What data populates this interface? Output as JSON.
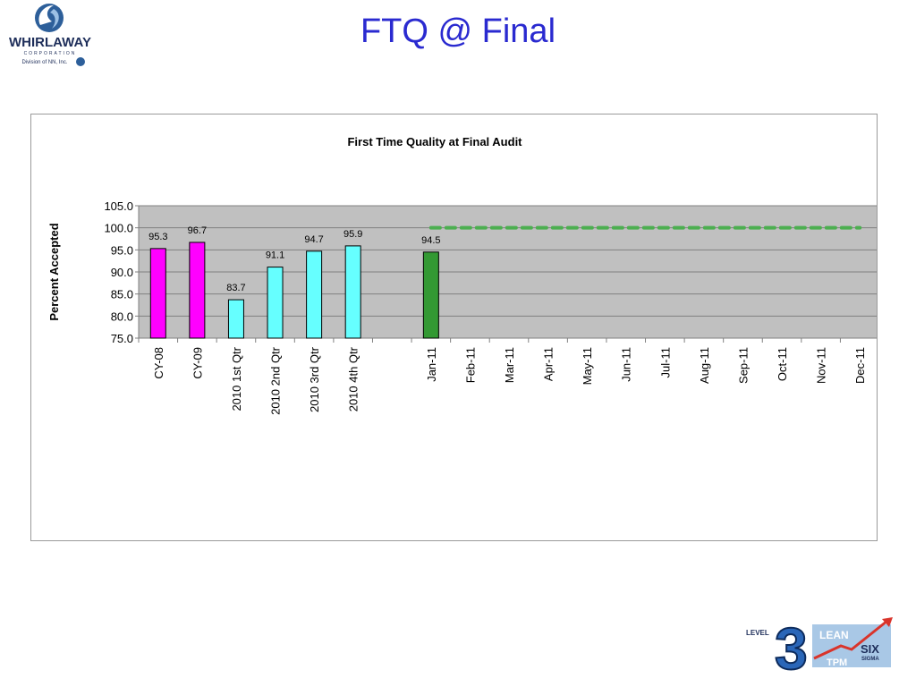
{
  "page": {
    "title": "FTQ @ Final"
  },
  "logo": {
    "name": "WHIRLAWAY",
    "sub": "CORPORATION",
    "division": "Division of NN, Inc."
  },
  "badge": {
    "level_text": "LEVEL",
    "level_number": "3",
    "lean": "LEAN",
    "six": "SIX",
    "sigma": "SIGMA",
    "tpm": "TPM"
  },
  "colors": {
    "title": "#2a2ad0",
    "plot_bg": "#c0c0c0",
    "magenta": "#ff00ff",
    "cyan": "#66ffff",
    "green": "#339933",
    "target": "#4caf50"
  },
  "chart_data": {
    "type": "bar",
    "title": "First Time Quality at Final Audit",
    "ylabel": "Percent Accepted",
    "xlabel": "",
    "ylim": [
      75.0,
      105.0
    ],
    "yticks": [
      "75.0",
      "80.0",
      "85.0",
      "90.0",
      "95.0",
      "100.0",
      "105.0"
    ],
    "grid": true,
    "categories": [
      "CY-08",
      "CY-09",
      "2010 1st Qtr",
      "2010 2nd Qtr",
      "2010 3rd Qtr",
      "2010 4th Qtr",
      "",
      "Jan-11",
      "Feb-11",
      "Mar-11",
      "Apr-11",
      "May-11",
      "Jun-11",
      "Jul-11",
      "Aug-11",
      "Sep-11",
      "Oct-11",
      "Nov-11",
      "Dec-11"
    ],
    "values": [
      95.3,
      96.7,
      83.7,
      91.1,
      94.7,
      95.9,
      null,
      94.5,
      null,
      null,
      null,
      null,
      null,
      null,
      null,
      null,
      null,
      null,
      null
    ],
    "value_labels": [
      "95.3",
      "96.7",
      "83.7",
      "91.1",
      "94.7",
      "95.9",
      "",
      "94.5",
      "",
      "",
      "",
      "",
      "",
      "",
      "",
      "",
      "",
      "",
      ""
    ],
    "bar_colors": [
      "#ff00ff",
      "#ff00ff",
      "#66ffff",
      "#66ffff",
      "#66ffff",
      "#66ffff",
      "",
      "#339933",
      "",
      "",
      "",
      "",
      "",
      "",
      "",
      "",
      "",
      "",
      ""
    ],
    "target_line": {
      "value": 100.0,
      "from_category": "Jan-11",
      "to_category": "Dec-11",
      "style": "dashed",
      "color": "#4caf50"
    }
  }
}
